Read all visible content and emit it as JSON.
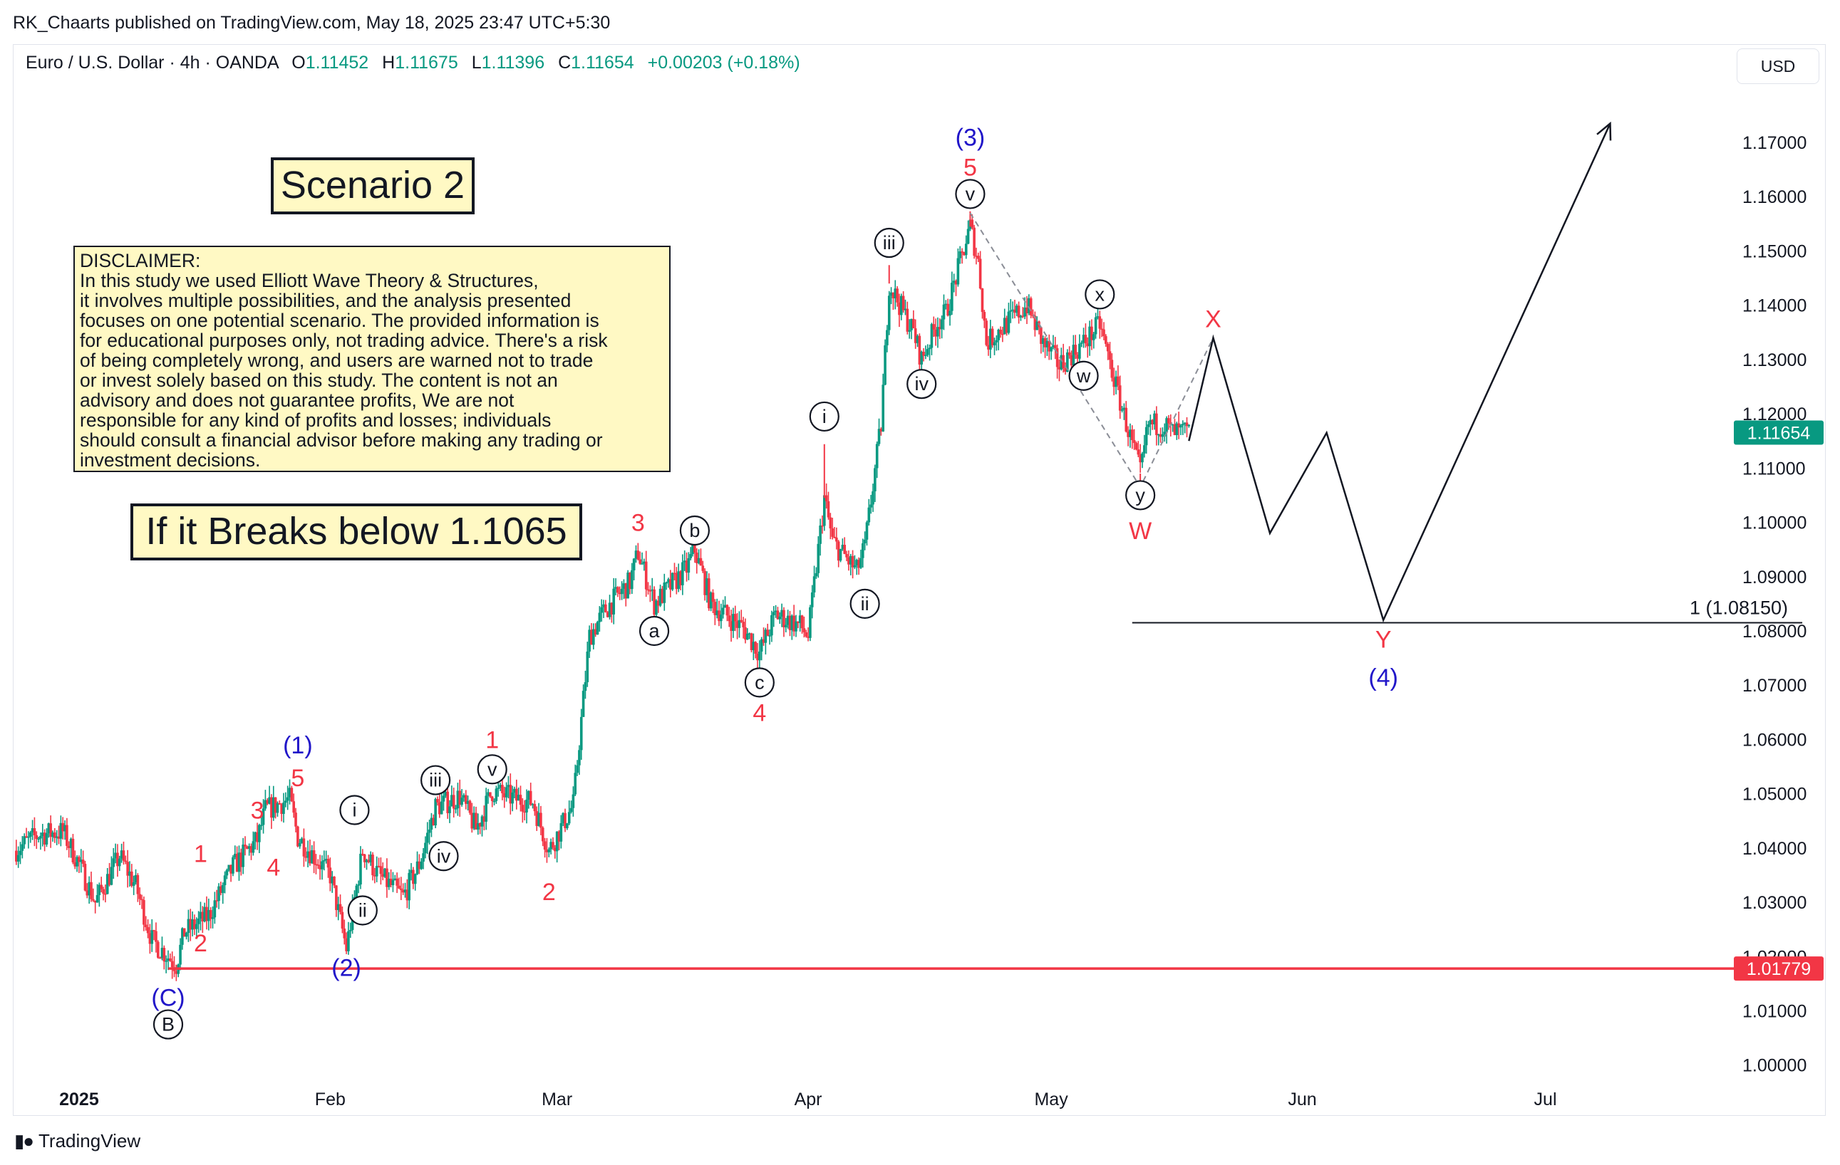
{
  "publisher_line": "RK_Chaarts published on TradingView.com, May 18, 2025 23:47 UTC+5:30",
  "header": {
    "symbol": "Euro / U.S. Dollar · 4h · OANDA",
    "open_label": "O",
    "open": "1.11452",
    "high_label": "H",
    "high": "1.11675",
    "low_label": "L",
    "low": "1.11396",
    "close_label": "C",
    "close": "1.11654",
    "change": "+0.00203 (+0.18%)"
  },
  "currency_button": "USD",
  "scenario_label": "Scenario 2",
  "disclaimer": {
    "heading": "DISCLAIMER:",
    "lines": [
      "In this study we used Elliott Wave Theory & Structures,",
      "it involves multiple possibilities, and the analysis presented",
      "focuses on one potential scenario. The provided information is",
      "for educational purposes only, not trading advice. There's a risk",
      "of being completely wrong, and users are warned not to trade",
      "or invest solely based on this study. The content is not an",
      "advisory and does not guarantee profits, We are not",
      "responsible for any kind of profits and losses; individuals",
      "should consult a financial advisor before making any trading or",
      "investment decisions."
    ]
  },
  "break_label": "If it Breaks below 1.1065",
  "footer_brand": "TradingView",
  "colors": {
    "up": "#089981",
    "down": "#f23645",
    "red": "#f23645",
    "blue": "#2116c9",
    "black": "#131722",
    "axis_text": "#131722",
    "price_tag": "#089981",
    "support_line": "#f23645"
  },
  "chart_data": {
    "type": "candlestick",
    "symbol": "EURUSD",
    "timeframe": "4h",
    "ylim": [
      0.9955,
      1.1805
    ],
    "y_ticks": [
      "1.17000",
      "1.16000",
      "1.15000",
      "1.14000",
      "1.13000",
      "1.12000",
      "1.11000",
      "1.10000",
      "1.09000",
      "1.08000",
      "1.07000",
      "1.06000",
      "1.05000",
      "1.04000",
      "1.03000",
      "1.02000",
      "1.01000",
      "1.00000"
    ],
    "x_ticks": [
      {
        "label": "2025",
        "date": "2025-01-01"
      },
      {
        "label": "Feb",
        "date": "2025-02-01"
      },
      {
        "label": "Mar",
        "date": "2025-03-01"
      },
      {
        "label": "Apr",
        "date": "2025-04-01"
      },
      {
        "label": "May",
        "date": "2025-05-01"
      },
      {
        "label": "Jun",
        "date": "2025-06-01"
      },
      {
        "label": "Jul",
        "date": "2025-07-01"
      }
    ],
    "xlim": [
      "2024-12-24",
      "2025-07-24"
    ],
    "price_path": [
      [
        "2024-12-24",
        1.0395
      ],
      [
        "2024-12-27",
        1.0425
      ],
      [
        "2024-12-30",
        1.043
      ],
      [
        "2025-01-01",
        1.037
      ],
      [
        "2025-01-03",
        1.03
      ],
      [
        "2025-01-06",
        1.0385
      ],
      [
        "2025-01-08",
        1.033
      ],
      [
        "2025-01-10",
        1.023
      ],
      [
        "2025-01-13",
        1.0185
      ],
      [
        "2025-01-14",
        1.0245
      ],
      [
        "2025-01-17",
        1.0275
      ],
      [
        "2025-01-20",
        1.0365
      ],
      [
        "2025-01-23",
        1.0415
      ],
      [
        "2025-01-24",
        1.047
      ],
      [
        "2025-01-27",
        1.049
      ],
      [
        "2025-01-28",
        1.042
      ],
      [
        "2025-01-30",
        1.0385
      ],
      [
        "2025-02-01",
        1.035
      ],
      [
        "2025-02-03",
        1.0215
      ],
      [
        "2025-02-05",
        1.0395
      ],
      [
        "2025-02-07",
        1.035
      ],
      [
        "2025-02-10",
        1.031
      ],
      [
        "2025-02-12",
        1.037
      ],
      [
        "2025-02-14",
        1.0475
      ],
      [
        "2025-02-17",
        1.0495
      ],
      [
        "2025-02-19",
        1.0435
      ],
      [
        "2025-02-21",
        1.0505
      ],
      [
        "2025-02-24",
        1.049
      ],
      [
        "2025-02-26",
        1.0485
      ],
      [
        "2025-02-28",
        1.0395
      ],
      [
        "2025-03-03",
        1.048
      ],
      [
        "2025-03-05",
        1.079
      ],
      [
        "2025-03-07",
        1.084
      ],
      [
        "2025-03-10",
        1.089
      ],
      [
        "2025-03-11",
        1.0945
      ],
      [
        "2025-03-13",
        1.085
      ],
      [
        "2025-03-17",
        1.0915
      ],
      [
        "2025-03-18",
        1.095
      ],
      [
        "2025-03-20",
        1.085
      ],
      [
        "2025-03-24",
        1.0805
      ],
      [
        "2025-03-26",
        1.076
      ],
      [
        "2025-03-28",
        1.083
      ],
      [
        "2025-03-31",
        1.081
      ],
      [
        "2025-04-01",
        1.079
      ],
      [
        "2025-04-03",
        1.1045
      ],
      [
        "2025-04-04",
        1.0965
      ],
      [
        "2025-04-07",
        1.091
      ],
      [
        "2025-04-08",
        1.0955
      ],
      [
        "2025-04-10",
        1.118
      ],
      [
        "2025-04-11",
        1.144
      ],
      [
        "2025-04-14",
        1.135
      ],
      [
        "2025-04-15",
        1.13
      ],
      [
        "2025-04-17",
        1.137
      ],
      [
        "2025-04-18",
        1.1385
      ],
      [
        "2025-04-21",
        1.1545
      ],
      [
        "2025-04-22",
        1.148
      ],
      [
        "2025-04-23",
        1.133
      ],
      [
        "2025-04-25",
        1.136
      ],
      [
        "2025-04-28",
        1.14
      ],
      [
        "2025-04-30",
        1.133
      ],
      [
        "2025-05-02",
        1.129
      ],
      [
        "2025-05-05",
        1.133
      ],
      [
        "2025-05-07",
        1.1365
      ],
      [
        "2025-05-09",
        1.125
      ],
      [
        "2025-05-12",
        1.109
      ],
      [
        "2025-05-13",
        1.118
      ],
      [
        "2025-05-15",
        1.118
      ],
      [
        "2025-05-16",
        1.1165
      ],
      [
        "2025-05-18",
        1.11654
      ]
    ],
    "extreme_marks": [
      [
        "2025-04-21",
        1.1573
      ],
      [
        "2025-05-12",
        1.1065
      ],
      [
        "2025-01-13",
        1.0178
      ],
      [
        "2025-04-11",
        1.1474
      ],
      [
        "2025-03-18",
        1.0955
      ],
      [
        "2025-04-03",
        1.1144
      ]
    ],
    "last_price": 1.11654,
    "last_price_label": "1.11654",
    "support_level": 1.01779,
    "support_label": "1.01779",
    "fib_level": {
      "value": 1.0815,
      "label": "1 (1.08150)",
      "from": "2025-05-11",
      "to": "2025-07-16"
    },
    "projection_path": [
      [
        "2025-05-18",
        1.115
      ],
      [
        "2025-05-21",
        1.134
      ],
      [
        "2025-05-28",
        1.098
      ],
      [
        "2025-06-04",
        1.1165
      ],
      [
        "2025-06-11",
        1.082
      ],
      [
        "2025-07-09",
        1.1735
      ]
    ],
    "dashed_channel": [
      [
        "2025-04-21",
        1.157
      ],
      [
        "2025-05-12",
        1.1065
      ],
      [
        "2025-05-21",
        1.134
      ]
    ],
    "wave_labels": [
      {
        "text": "(C)",
        "date": "2025-01-12",
        "price": 1.0125,
        "color": "blue"
      },
      {
        "text": "B",
        "date": "2025-01-12",
        "price": 1.0075,
        "color": "black",
        "circled": true
      },
      {
        "text": "1",
        "date": "2025-01-16",
        "price": 1.039,
        "color": "red"
      },
      {
        "text": "2",
        "date": "2025-01-16",
        "price": 1.0225,
        "color": "red"
      },
      {
        "text": "3",
        "date": "2025-01-23",
        "price": 1.047,
        "color": "red"
      },
      {
        "text": "4",
        "date": "2025-01-25",
        "price": 1.0365,
        "color": "red"
      },
      {
        "text": "5",
        "date": "2025-01-28",
        "price": 1.053,
        "color": "red"
      },
      {
        "text": "(1)",
        "date": "2025-01-28",
        "price": 1.059,
        "color": "blue"
      },
      {
        "text": "(2)",
        "date": "2025-02-03",
        "price": 1.018,
        "color": "blue"
      },
      {
        "text": "i",
        "date": "2025-02-04",
        "price": 1.047,
        "color": "black",
        "circled": true
      },
      {
        "text": "ii",
        "date": "2025-02-05",
        "price": 1.0285,
        "color": "black",
        "circled": true
      },
      {
        "text": "iii",
        "date": "2025-02-14",
        "price": 1.0525,
        "color": "black",
        "circled": true
      },
      {
        "text": "iv",
        "date": "2025-02-15",
        "price": 1.0385,
        "color": "black",
        "circled": true
      },
      {
        "text": "v",
        "date": "2025-02-21",
        "price": 1.0545,
        "color": "black",
        "circled": true
      },
      {
        "text": "1",
        "date": "2025-02-21",
        "price": 1.06,
        "color": "red"
      },
      {
        "text": "2",
        "date": "2025-02-28",
        "price": 1.032,
        "color": "red"
      },
      {
        "text": "3",
        "date": "2025-03-11",
        "price": 1.1,
        "color": "red"
      },
      {
        "text": "a",
        "date": "2025-03-13",
        "price": 1.08,
        "color": "black",
        "circled": true
      },
      {
        "text": "b",
        "date": "2025-03-18",
        "price": 1.0985,
        "color": "black",
        "circled": true
      },
      {
        "text": "c",
        "date": "2025-03-26",
        "price": 1.0705,
        "color": "black",
        "circled": true
      },
      {
        "text": "4",
        "date": "2025-03-26",
        "price": 1.065,
        "color": "red"
      },
      {
        "text": "i",
        "date": "2025-04-03",
        "price": 1.1195,
        "color": "black",
        "circled": true
      },
      {
        "text": "ii",
        "date": "2025-04-08",
        "price": 1.085,
        "color": "black",
        "circled": true
      },
      {
        "text": "iii",
        "date": "2025-04-11",
        "price": 1.1515,
        "color": "black",
        "circled": true
      },
      {
        "text": "iv",
        "date": "2025-04-15",
        "price": 1.1255,
        "color": "black",
        "circled": true
      },
      {
        "text": "v",
        "date": "2025-04-21",
        "price": 1.1605,
        "color": "black",
        "circled": true
      },
      {
        "text": "5",
        "date": "2025-04-21",
        "price": 1.1655,
        "color": "red"
      },
      {
        "text": "(3)",
        "date": "2025-04-21",
        "price": 1.171,
        "color": "blue"
      },
      {
        "text": "x",
        "date": "2025-05-07",
        "price": 1.142,
        "color": "black",
        "circled": true
      },
      {
        "text": "w",
        "date": "2025-05-05",
        "price": 1.127,
        "color": "black",
        "circled": true
      },
      {
        "text": "y",
        "date": "2025-05-12",
        "price": 1.105,
        "color": "black",
        "circled": true
      },
      {
        "text": "W",
        "date": "2025-05-12",
        "price": 1.0985,
        "color": "red"
      },
      {
        "text": "X",
        "date": "2025-05-21",
        "price": 1.1375,
        "color": "red"
      },
      {
        "text": "Y",
        "date": "2025-06-11",
        "price": 1.0785,
        "color": "red"
      },
      {
        "text": "(4)",
        "date": "2025-06-11",
        "price": 1.0715,
        "color": "blue"
      }
    ]
  }
}
